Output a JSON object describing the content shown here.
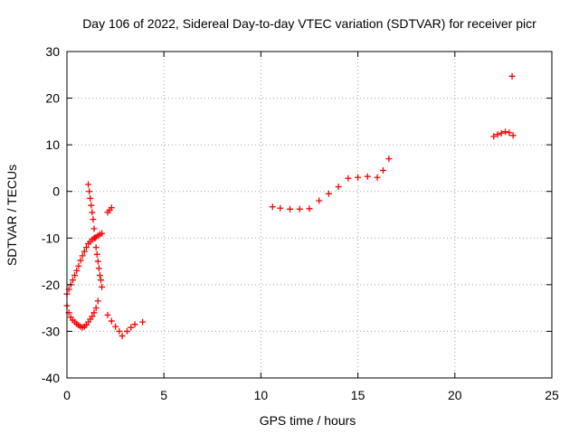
{
  "chart_data": {
    "type": "scatter",
    "title": "Day 106 of 2022, Sidereal Day-to-day VTEC variation (SDTVAR) for receiver picr",
    "xlabel": "GPS time / hours",
    "ylabel": "SDTVAR / TECUs",
    "xlim": [
      0,
      25
    ],
    "ylim": [
      -40,
      30
    ],
    "xticks": [
      "0",
      "5",
      "10",
      "15",
      "20",
      "25"
    ],
    "yticks": [
      "30",
      "20",
      "10",
      "0",
      "-10",
      "-20",
      "-30",
      "-40"
    ],
    "grid": true,
    "marker": "+",
    "colors": {
      "series": "#ff0000",
      "grid": "#a0a0a0",
      "axis": "#000000"
    },
    "series": [
      {
        "name": "SDTVAR",
        "x": [
          0.0,
          0.1,
          0.2,
          0.3,
          0.4,
          0.5,
          0.6,
          0.7,
          0.8,
          0.9,
          1.0,
          1.1,
          1.2,
          1.3,
          1.4,
          1.5,
          1.6,
          1.7,
          1.8,
          0.0,
          0.1,
          0.2,
          0.3,
          0.4,
          0.5,
          0.6,
          0.7,
          0.8,
          0.9,
          1.0,
          1.1,
          1.2,
          1.3,
          1.4,
          1.5,
          1.6,
          1.1,
          1.15,
          1.2,
          1.25,
          1.3,
          1.35,
          1.4,
          1.45,
          1.5,
          1.55,
          1.6,
          1.65,
          1.7,
          1.75,
          1.8,
          2.1,
          2.2,
          2.3,
          2.1,
          2.3,
          2.5,
          2.7,
          2.85,
          3.1,
          3.3,
          3.5,
          3.9,
          10.6,
          11.0,
          11.5,
          12.0,
          12.5,
          13.0,
          13.5,
          14.0,
          14.5,
          15.0,
          15.5,
          16.0,
          16.3,
          16.6,
          22.0,
          22.2,
          22.4,
          22.6,
          22.8,
          23.0,
          22.95
        ],
        "y": [
          -22.0,
          -21.0,
          -20.0,
          -19.0,
          -18.0,
          -17.0,
          -16.0,
          -14.8,
          -13.8,
          -12.9,
          -12.0,
          -11.2,
          -10.8,
          -10.3,
          -10.0,
          -9.8,
          -9.5,
          -9.2,
          -9.0,
          -24.5,
          -26.0,
          -27.0,
          -27.6,
          -28.0,
          -28.4,
          -28.7,
          -29.0,
          -29.2,
          -29.0,
          -28.6,
          -28.0,
          -27.4,
          -26.8,
          -26.0,
          -25.0,
          -23.5,
          1.5,
          0.0,
          -1.5,
          -3.0,
          -4.5,
          -6.0,
          -8.0,
          -10.0,
          -12.0,
          -13.5,
          -15.0,
          -16.5,
          -18.0,
          -19.0,
          -20.5,
          -4.5,
          -4.0,
          -3.5,
          -26.5,
          -27.8,
          -29.0,
          -30.0,
          -31.0,
          -30.0,
          -29.2,
          -28.5,
          -28.0,
          -3.3,
          -3.6,
          -3.8,
          -3.8,
          -3.7,
          -2.0,
          -0.5,
          1.0,
          2.8,
          3.0,
          3.2,
          3.0,
          4.5,
          7.0,
          11.8,
          12.2,
          12.5,
          12.8,
          12.6,
          12.0,
          24.7
        ]
      }
    ]
  }
}
